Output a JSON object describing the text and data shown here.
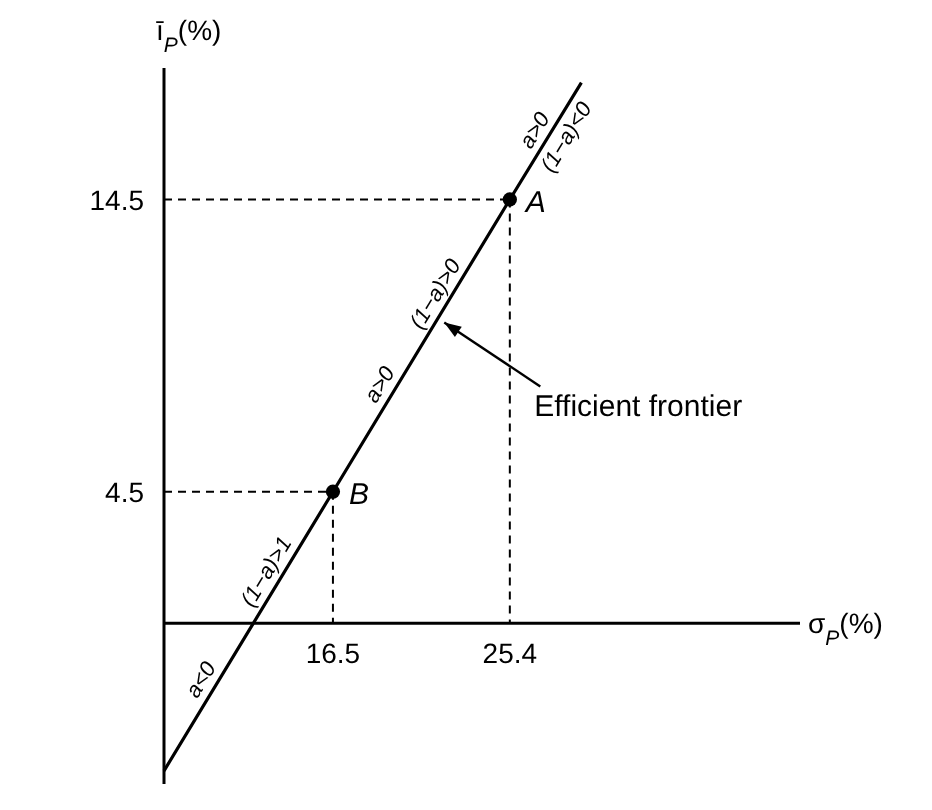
{
  "chart_data": {
    "type": "line",
    "xlabel": "σ$_{P}$(%)",
    "ylabel": "ī$_{P}$(%)",
    "xlim": [
      8,
      40
    ],
    "ylim": [
      -5.5,
      19
    ],
    "xticks": [
      16.5,
      25.4
    ],
    "yticks": [
      4.5,
      14.5
    ],
    "grid": false,
    "series": [
      {
        "color": "#000000",
        "x": [
          8,
          16.5,
          25.4,
          29
        ],
        "values": [
          -5.05,
          4.5,
          14.5,
          18.5
        ],
        "marker": "none"
      },
      {
        "type": "scatter",
        "color": "#000000",
        "x": [
          16.5,
          25.4
        ],
        "values": [
          4.5,
          14.5
        ],
        "marker": "circle"
      }
    ],
    "annotations": [
      {
        "text": "B",
        "x": 16.5,
        "y": 4.5
      },
      {
        "text": "A",
        "x": 25.4,
        "y": 14.5
      },
      {
        "text": "a<0",
        "x": 10.5,
        "y": -2.2
      },
      {
        "text": "(1−a)>1",
        "x": 13.8,
        "y": 1.5
      },
      {
        "text": "a>0",
        "x": 19.5,
        "y": 7.9
      },
      {
        "text": "(1−a)>0",
        "x": 22.3,
        "y": 11
      },
      {
        "text": "a>0",
        "x": 27.3,
        "y": 16.6
      },
      {
        "text": "(1−a)<0",
        "x": 27.6,
        "y": 16.9
      },
      {
        "text": "Efficient frontier",
        "x": 21.8,
        "y": 10.5
      }
    ]
  }
}
